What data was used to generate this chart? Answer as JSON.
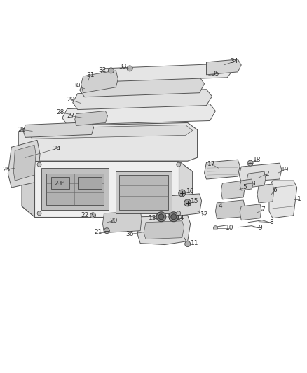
{
  "background_color": "#ffffff",
  "fig_width": 4.38,
  "fig_height": 5.33,
  "dpi": 100,
  "text_color": "#333333",
  "line_color": "#555555",
  "part_edge": "#555555",
  "part_face": "#f0f0f0",
  "part_face_dark": "#d8d8d8",
  "font_size": 6.5
}
